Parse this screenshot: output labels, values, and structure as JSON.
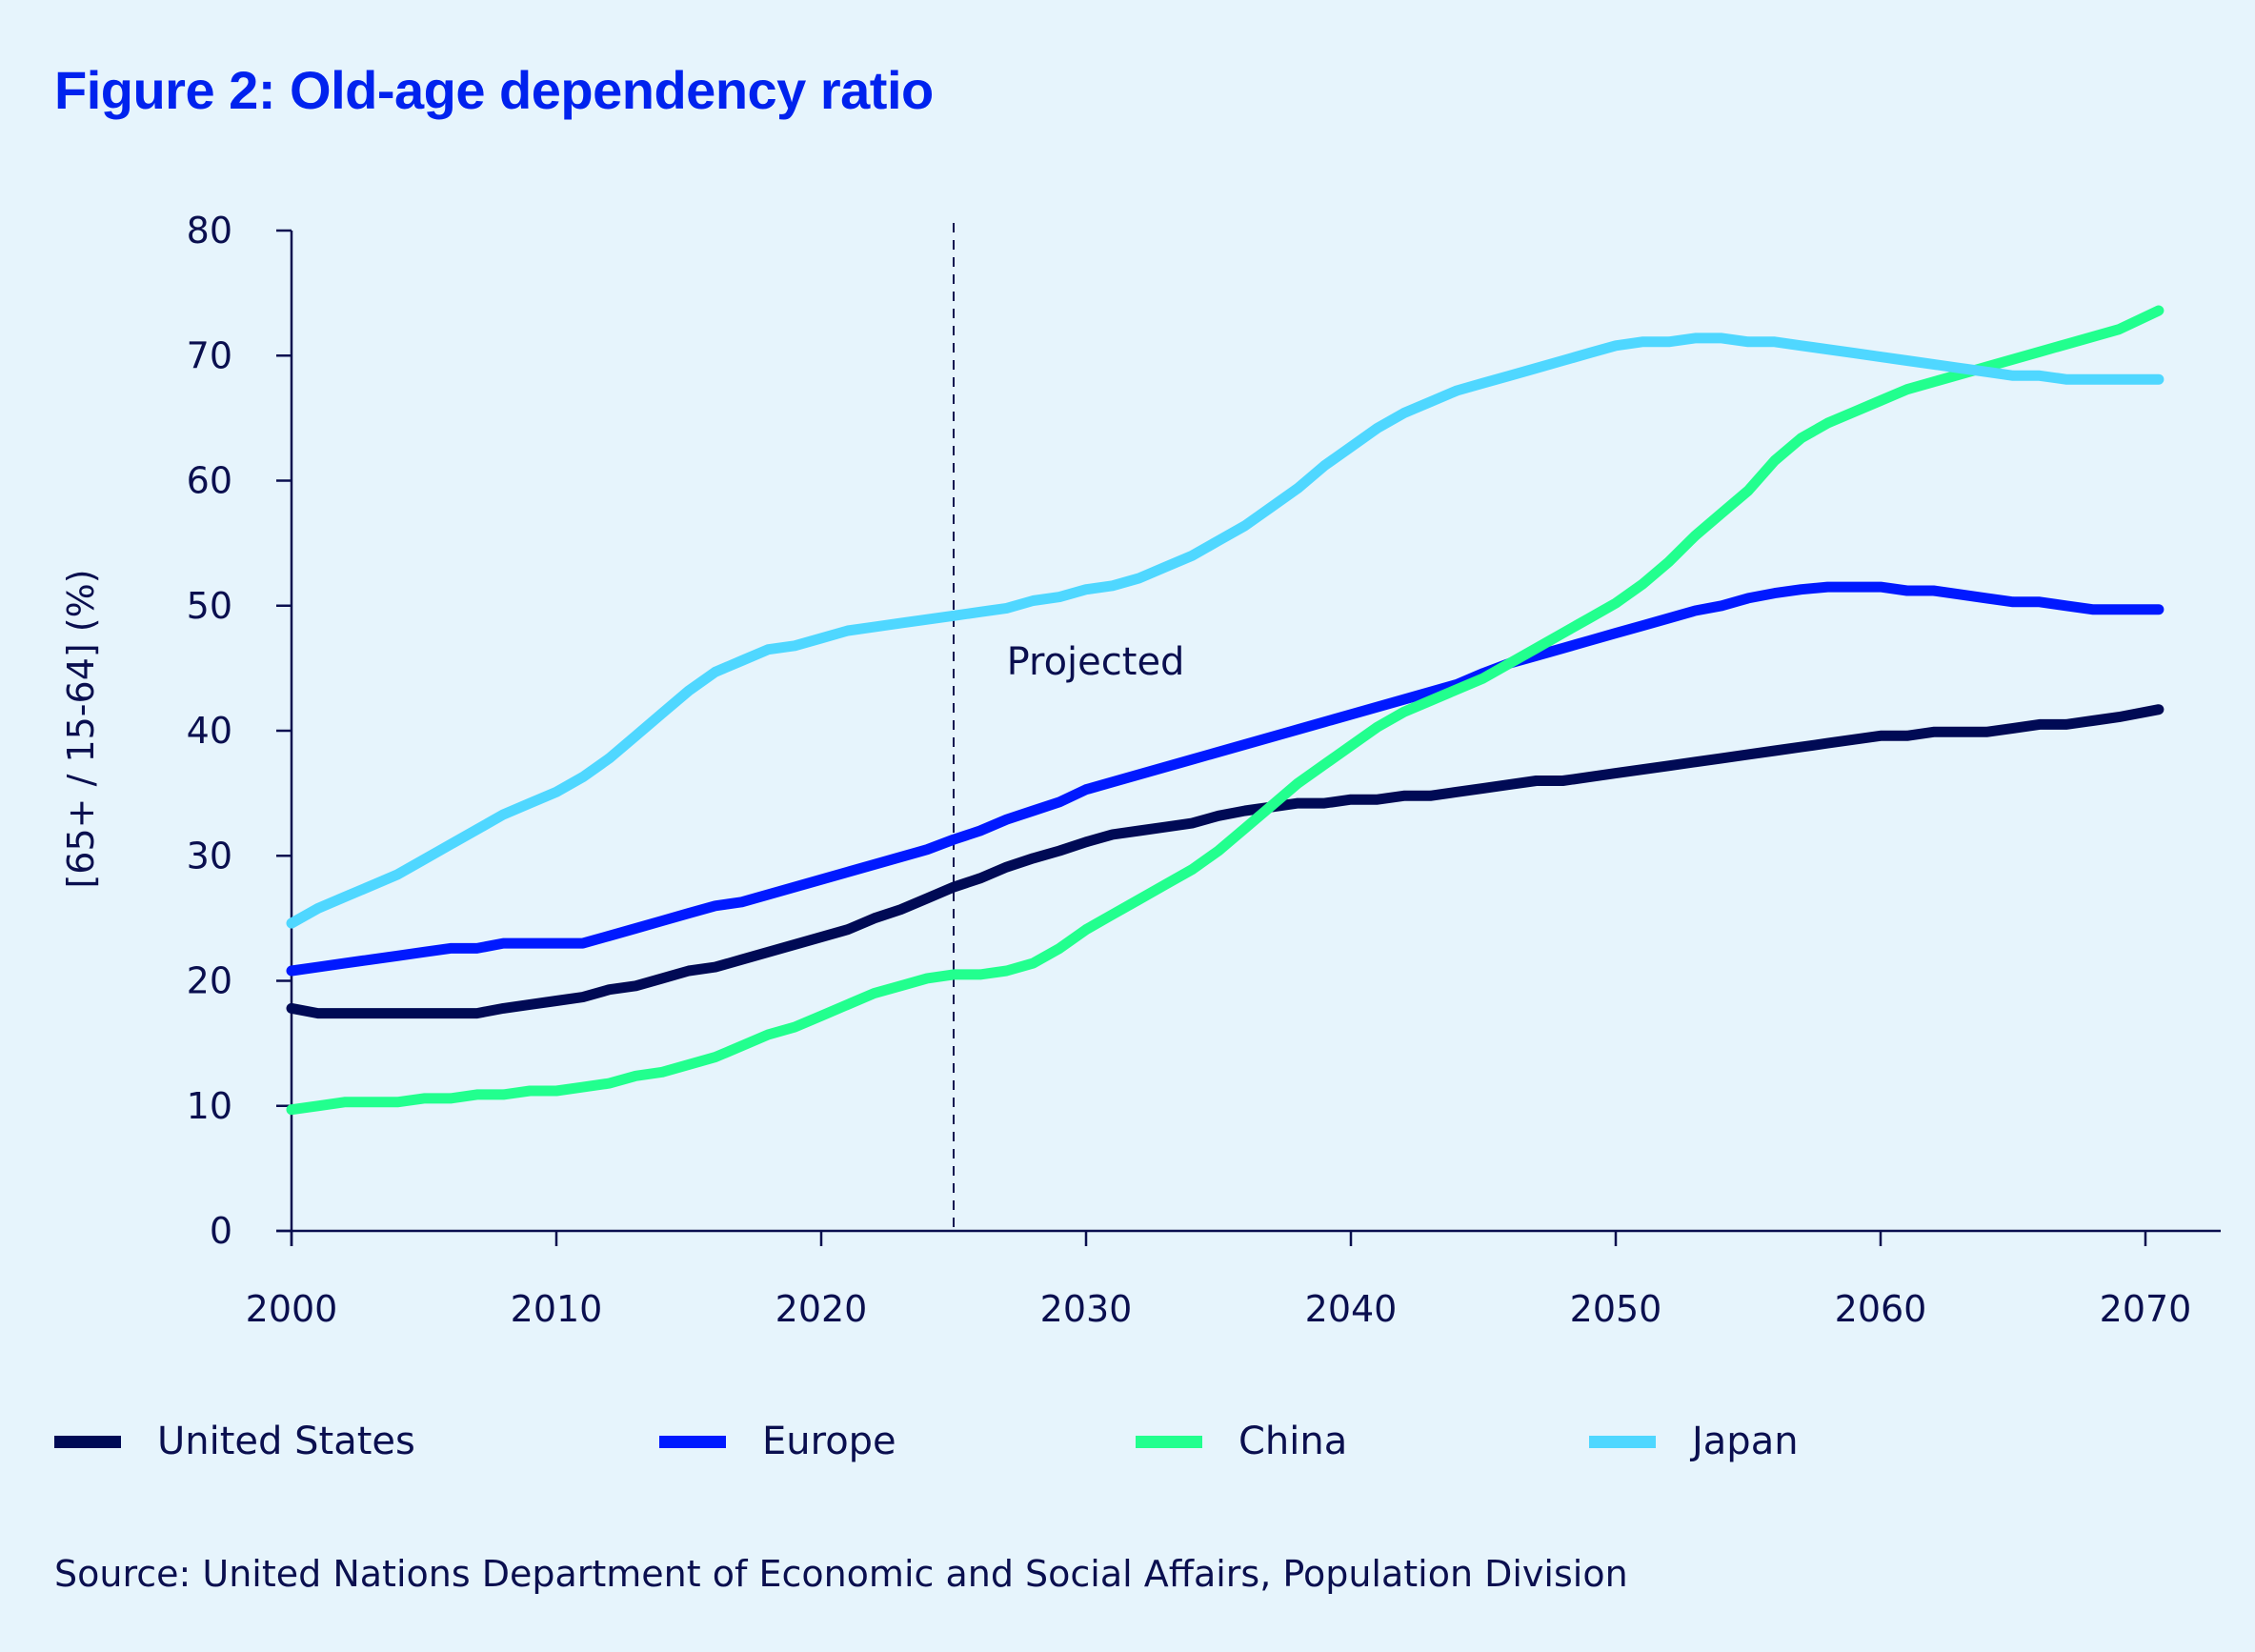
{
  "title": "Figure 2: Old-age dependency ratio",
  "source": "Source: United Nations Department of Economic and Social Affairs, Population Division",
  "chart_data": {
    "type": "line",
    "title": "Figure 2: Old-age dependency ratio",
    "xlabel": "",
    "ylabel": "[65+ / 15-64] (%)",
    "xlim": [
      2000,
      2073
    ],
    "ylim": [
      0,
      80
    ],
    "xticks": [
      2000,
      2010,
      2020,
      2030,
      2040,
      2050,
      2060,
      2070
    ],
    "yticks": [
      0,
      10,
      20,
      30,
      40,
      50,
      60,
      70,
      80
    ],
    "xtick_labels": [
      "2000",
      "2010",
      "2020",
      "2030",
      "2040",
      "2050",
      "2060",
      "2070"
    ],
    "ytick_labels": [
      "0",
      "10",
      "20",
      "30",
      "40",
      "50",
      "60",
      "70",
      "80"
    ],
    "grid": false,
    "legend_position": "bottom",
    "annotations": [
      {
        "text": "Projected",
        "x": 2027,
        "y": 44.5
      },
      {
        "type": "vline",
        "x": 2025,
        "style": "dashed"
      }
    ],
    "x": [
      2000,
      2001,
      2002,
      2003,
      2004,
      2005,
      2006,
      2007,
      2008,
      2009,
      2010,
      2011,
      2012,
      2013,
      2014,
      2015,
      2016,
      2017,
      2018,
      2019,
      2020,
      2021,
      2022,
      2023,
      2024,
      2025,
      2026,
      2027,
      2028,
      2029,
      2030,
      2031,
      2032,
      2033,
      2034,
      2035,
      2036,
      2037,
      2038,
      2039,
      2040,
      2041,
      2042,
      2043,
      2044,
      2045,
      2046,
      2047,
      2048,
      2049,
      2050,
      2051,
      2052,
      2053,
      2054,
      2055,
      2056,
      2057,
      2058,
      2059,
      2060,
      2061,
      2062,
      2063,
      2064,
      2065,
      2066,
      2067,
      2068,
      2069,
      2070
    ],
    "series": [
      {
        "name": "United States",
        "color": "#000a55",
        "values": [
          17.8,
          17.4,
          17.4,
          17.4,
          17.4,
          17.4,
          17.4,
          17.4,
          17.8,
          18.1,
          18.4,
          18.7,
          19.3,
          19.6,
          20.2,
          20.8,
          21.1,
          21.7,
          22.3,
          22.9,
          23.5,
          24.1,
          25.0,
          25.7,
          26.6,
          27.5,
          28.2,
          29.1,
          29.8,
          30.4,
          31.1,
          31.7,
          32.0,
          32.3,
          32.6,
          33.2,
          33.6,
          33.9,
          34.2,
          34.2,
          34.5,
          34.5,
          34.8,
          34.8,
          35.1,
          35.4,
          35.7,
          36.0,
          36.0,
          36.3,
          36.6,
          36.9,
          37.2,
          37.5,
          37.8,
          38.1,
          38.4,
          38.7,
          39.0,
          39.3,
          39.6,
          39.6,
          39.9,
          39.9,
          39.9,
          40.2,
          40.5,
          40.5,
          40.8,
          41.1,
          41.7
        ]
      },
      {
        "name": "Europe",
        "color": "#0019ff",
        "values": [
          20.8,
          21.1,
          21.4,
          21.7,
          22.0,
          22.3,
          22.6,
          22.6,
          23.0,
          23.0,
          23.0,
          23.0,
          23.6,
          24.2,
          24.8,
          25.4,
          26.0,
          26.3,
          26.9,
          27.5,
          28.1,
          28.7,
          29.3,
          29.9,
          30.5,
          31.3,
          32.0,
          32.9,
          33.6,
          34.3,
          35.3,
          35.9,
          36.5,
          37.1,
          37.7,
          38.3,
          38.9,
          39.5,
          40.1,
          40.7,
          41.3,
          41.9,
          42.5,
          43.1,
          43.7,
          44.6,
          45.4,
          46.0,
          46.6,
          47.2,
          47.8,
          48.4,
          49.0,
          49.6,
          50.0,
          50.6,
          51.0,
          51.3,
          51.5,
          51.5,
          51.5,
          51.2,
          51.2,
          50.9,
          50.6,
          50.3,
          50.3,
          50.0,
          49.7,
          49.7,
          49.7
        ]
      },
      {
        "name": "China",
        "color": "#22ff8e",
        "values": [
          9.7,
          10.0,
          10.3,
          10.3,
          10.3,
          10.6,
          10.6,
          10.9,
          10.9,
          11.2,
          11.2,
          11.5,
          11.8,
          12.4,
          12.7,
          13.3,
          13.9,
          14.8,
          15.7,
          16.3,
          17.2,
          18.1,
          19.0,
          19.6,
          20.2,
          20.5,
          20.5,
          20.8,
          21.4,
          22.6,
          24.1,
          25.3,
          26.5,
          27.7,
          28.9,
          30.4,
          32.2,
          34.0,
          35.8,
          37.3,
          38.8,
          40.3,
          41.5,
          42.4,
          43.3,
          44.2,
          45.4,
          46.6,
          47.8,
          49.0,
          50.2,
          51.7,
          53.5,
          55.6,
          57.4,
          59.2,
          61.6,
          63.4,
          64.6,
          65.5,
          66.4,
          67.3,
          67.9,
          68.5,
          69.1,
          69.7,
          70.3,
          70.9,
          71.5,
          72.1,
          73.6
        ]
      },
      {
        "name": "Japan",
        "color": "#4fd7ff",
        "values": [
          24.6,
          25.8,
          26.7,
          27.6,
          28.5,
          29.7,
          30.9,
          32.1,
          33.3,
          34.2,
          35.1,
          36.3,
          37.8,
          39.6,
          41.4,
          43.2,
          44.7,
          45.6,
          46.5,
          46.8,
          47.4,
          48.0,
          48.3,
          48.6,
          48.9,
          49.2,
          49.5,
          49.8,
          50.4,
          50.7,
          51.3,
          51.6,
          52.2,
          53.1,
          54.0,
          55.2,
          56.4,
          57.9,
          59.4,
          61.2,
          62.7,
          64.2,
          65.4,
          66.3,
          67.2,
          67.8,
          68.4,
          69.0,
          69.6,
          70.2,
          70.8,
          71.1,
          71.1,
          71.4,
          71.4,
          71.1,
          71.1,
          70.8,
          70.5,
          70.2,
          69.9,
          69.6,
          69.3,
          69.0,
          68.7,
          68.4,
          68.4,
          68.1,
          68.1,
          68.1,
          68.1
        ]
      }
    ]
  }
}
